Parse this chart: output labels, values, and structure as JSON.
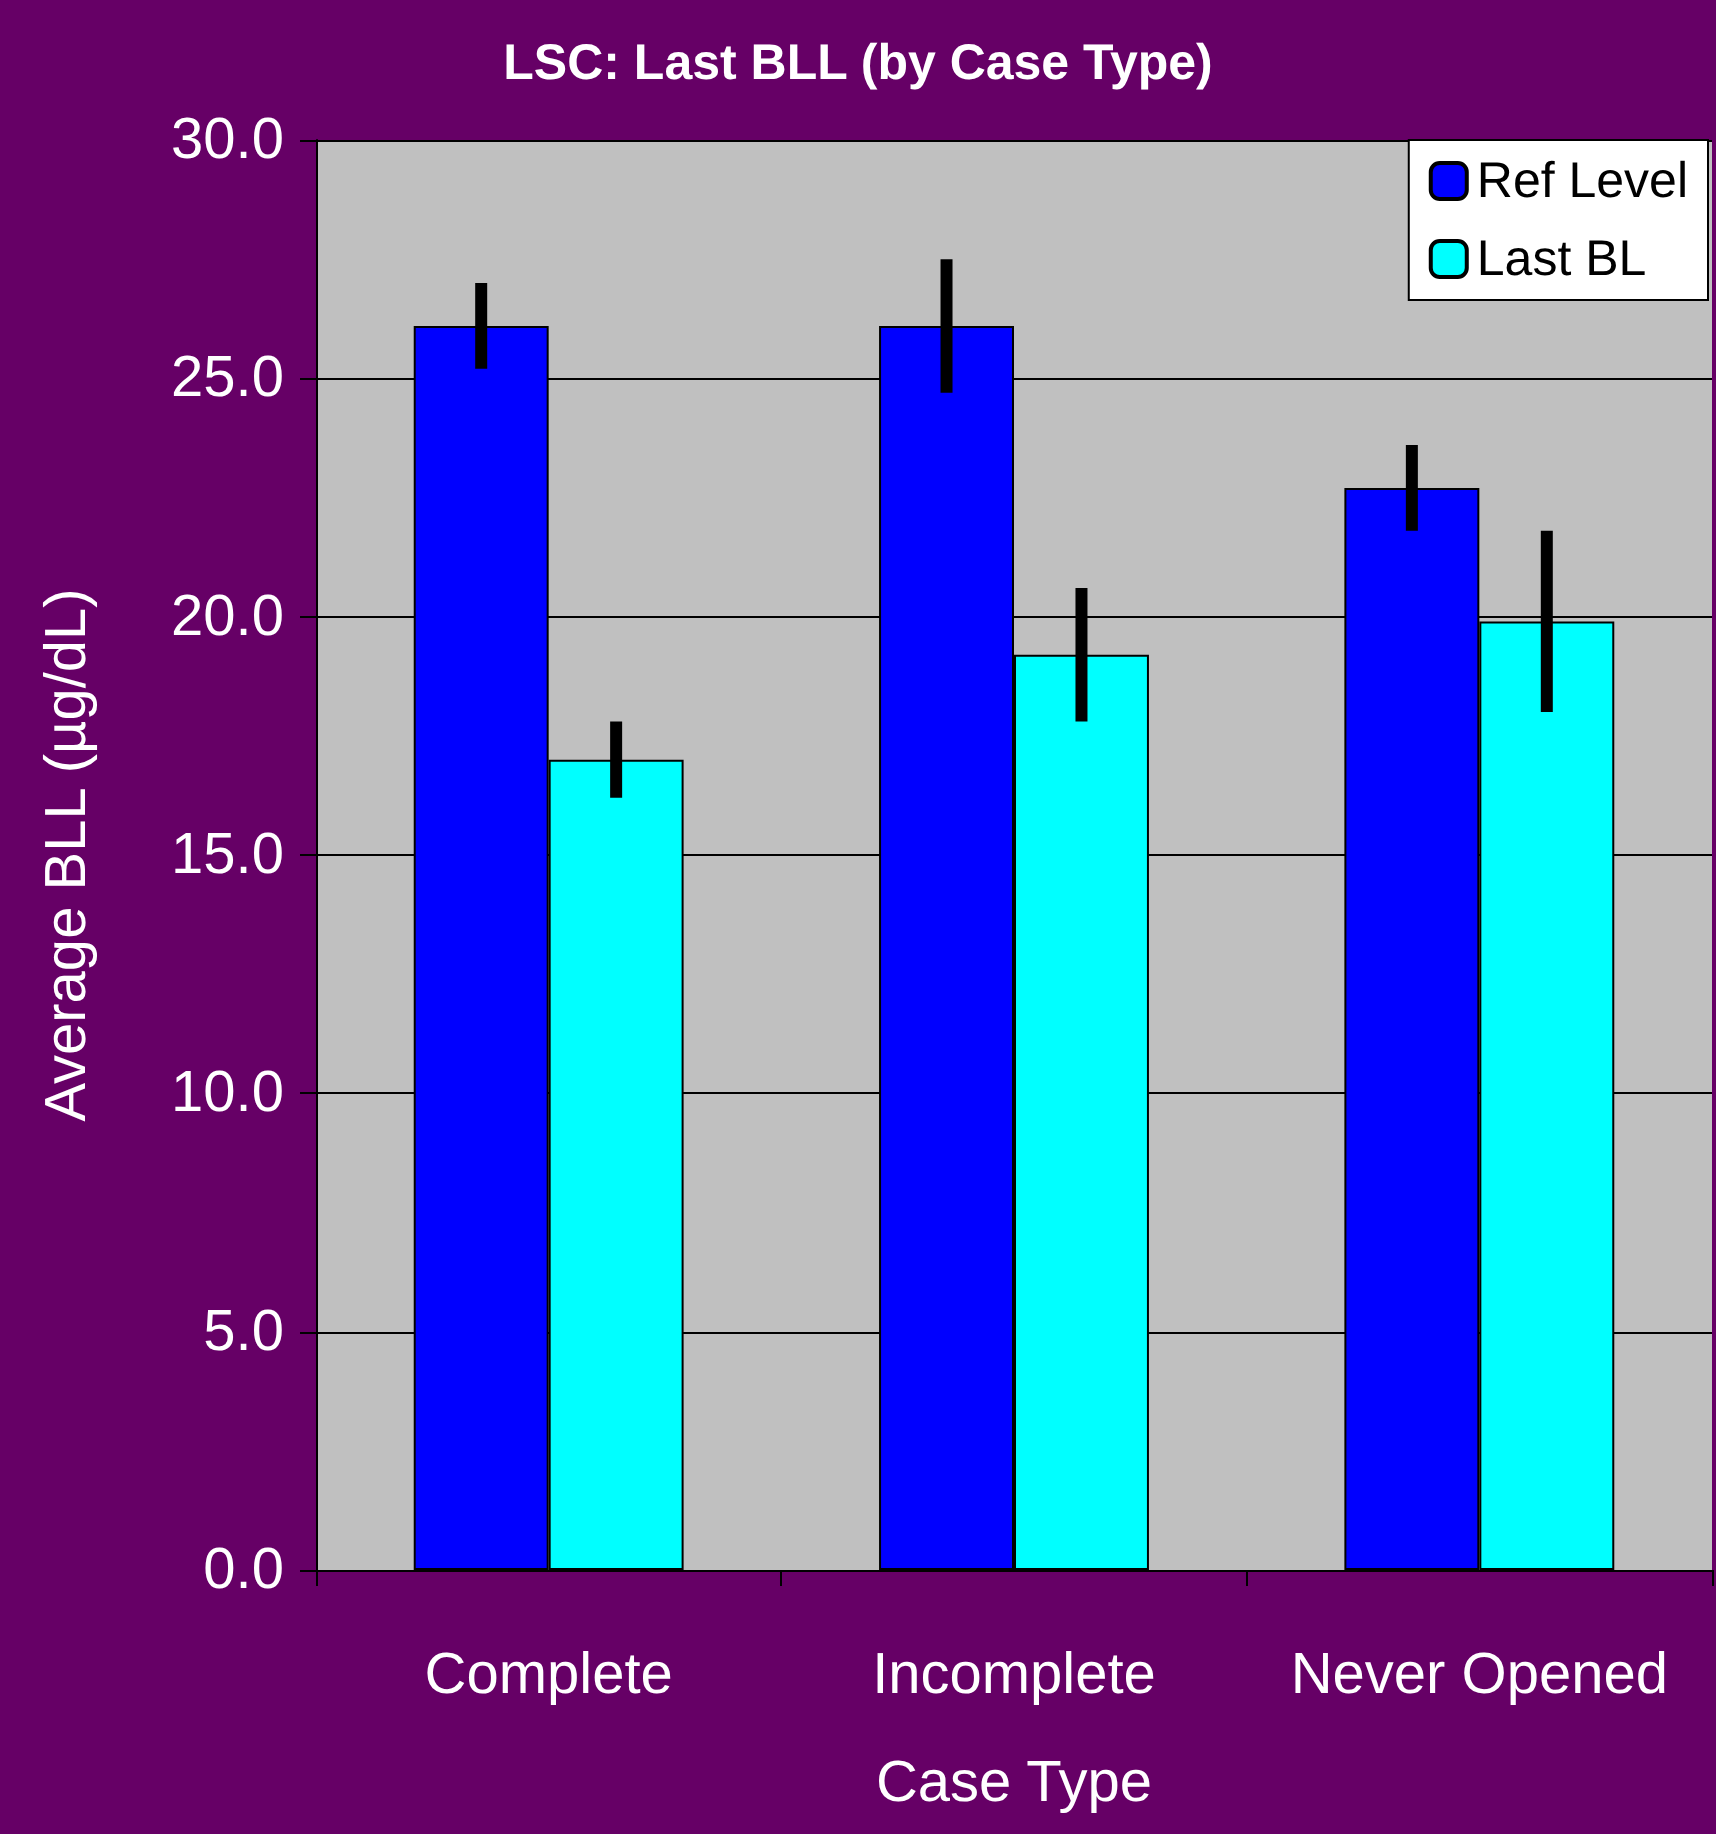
{
  "chart_data": {
    "type": "bar",
    "title": "LSC: Last BLL (by Case Type)",
    "xlabel": "Case Type",
    "ylabel": "Average BLL (µg/dL)",
    "categories": [
      "Complete",
      "Incomplete",
      "Never Opened"
    ],
    "series": [
      {
        "name": "Ref Level",
        "color": "#0000ff",
        "values": [
          26.1,
          26.1,
          22.7
        ],
        "errors": [
          0.9,
          1.4,
          0.9
        ]
      },
      {
        "name": "Last BL",
        "color": "#00ffff",
        "values": [
          17.0,
          19.2,
          19.9
        ],
        "errors": [
          0.8,
          1.4,
          1.9
        ]
      }
    ],
    "ylim": [
      0,
      30
    ],
    "yticks": [
      {
        "value": 0,
        "label": "0.0"
      },
      {
        "value": 5,
        "label": "5.0"
      },
      {
        "value": 10,
        "label": "10.0"
      },
      {
        "value": 15,
        "label": "15.0"
      },
      {
        "value": 20,
        "label": "20.0"
      },
      {
        "value": 25,
        "label": "25.0"
      },
      {
        "value": 30,
        "label": "30.0"
      }
    ],
    "grid": "y",
    "legend": "top right"
  }
}
